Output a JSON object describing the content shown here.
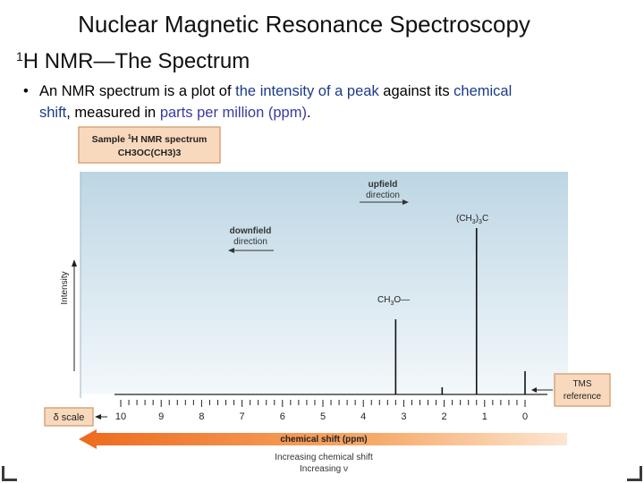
{
  "slide": {
    "title": "Nuclear Magnetic Resonance Spectroscopy",
    "subtitle_sup": "1",
    "subtitle_main": "H NMR—The Spectrum",
    "bullet": {
      "marker": "•",
      "parts": {
        "p1": "An NMR spectrum is a plot of ",
        "p2": "the intensity of a peak",
        "p3": " against its ",
        "p4": "chemical",
        "p5": "shift",
        "p6": ", measured in ",
        "p7": "parts per million (ppm)",
        "p8": "."
      }
    },
    "colors": {
      "highlight": "#1a3b8c",
      "spectrum_bg": "#d6e6ef",
      "arrow_orange": "#f08c3c"
    }
  },
  "chart_data": {
    "type": "line",
    "sample_box": {
      "line1_pre": "Sample ",
      "line1_sup": "1",
      "line1_post": "H NMR spectrum",
      "formula": "CH3OC(CH3)3"
    },
    "ylabel": "Intensity",
    "xlabel": "chemical shift (ppm)",
    "x_scale_label": "δ scale",
    "x_ticks": [
      10,
      9,
      8,
      7,
      6,
      5,
      4,
      3,
      2,
      1,
      0
    ],
    "xlim": [
      10.5,
      -0.7
    ],
    "ylim": [
      0,
      100
    ],
    "peaks": [
      {
        "x": 3.2,
        "y": 42,
        "label": "CH3O—"
      },
      {
        "x": 2.05,
        "y": 4
      },
      {
        "x": 1.2,
        "y": 93,
        "label": "(CH3)3C"
      },
      {
        "x": 0.0,
        "y": 13
      }
    ],
    "annotations": {
      "upfield": [
        "upfield",
        "direction"
      ],
      "downfield": [
        "downfield",
        "direction"
      ],
      "tms": [
        "TMS",
        "reference"
      ],
      "footer1": "Increasing chemical shift",
      "footer2": "Increasing ν"
    }
  }
}
